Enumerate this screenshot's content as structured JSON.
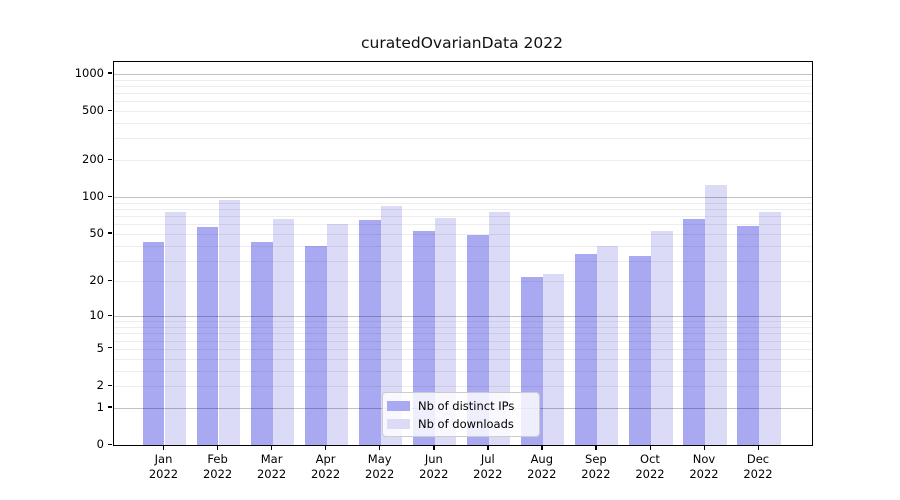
{
  "title": "curatedOvarianData 2022",
  "chart_data": {
    "type": "bar",
    "title": "curatedOvarianData 2022",
    "categories": [
      "Jan 2022",
      "Feb 2022",
      "Mar 2022",
      "Apr 2022",
      "May 2022",
      "Jun 2022",
      "Jul 2022",
      "Aug 2022",
      "Sep 2022",
      "Oct 2022",
      "Nov 2022",
      "Dec 2022"
    ],
    "month_labels": [
      "Jan",
      "Feb",
      "Mar",
      "Apr",
      "May",
      "Jun",
      "Jul",
      "Aug",
      "Sep",
      "Oct",
      "Nov",
      "Dec"
    ],
    "year_label": "2022",
    "series": [
      {
        "name": "Nb of distinct IPs",
        "color": "#a9a9f1",
        "values": [
          43,
          57,
          43,
          40,
          65,
          53,
          49,
          22,
          34,
          33,
          66,
          58
        ]
      },
      {
        "name": "Nb of downloads",
        "color": "#dbdbf8",
        "values": [
          75,
          94,
          66,
          60,
          85,
          67,
          76,
          23,
          40,
          53,
          125,
          76
        ]
      }
    ],
    "y_axis": {
      "scale": "log1p",
      "tick_values": [
        0,
        1,
        2,
        5,
        10,
        20,
        50,
        100,
        200,
        500,
        1000
      ],
      "tick_labels": [
        "0",
        "1",
        "2",
        "5",
        "10",
        "20",
        "50",
        "100",
        "200",
        "500",
        "1000"
      ],
      "range_top": 1250,
      "grid": true,
      "major_grid_values": [
        1,
        10,
        100,
        1000
      ],
      "minor_grid_values": [
        2,
        3,
        4,
        5,
        6,
        7,
        8,
        9,
        20,
        30,
        40,
        50,
        60,
        70,
        80,
        90,
        200,
        300,
        400,
        500,
        600,
        700,
        800,
        900
      ]
    },
    "xlabel": "",
    "ylabel": "",
    "legend_position": "bottom-center",
    "grid": true
  }
}
